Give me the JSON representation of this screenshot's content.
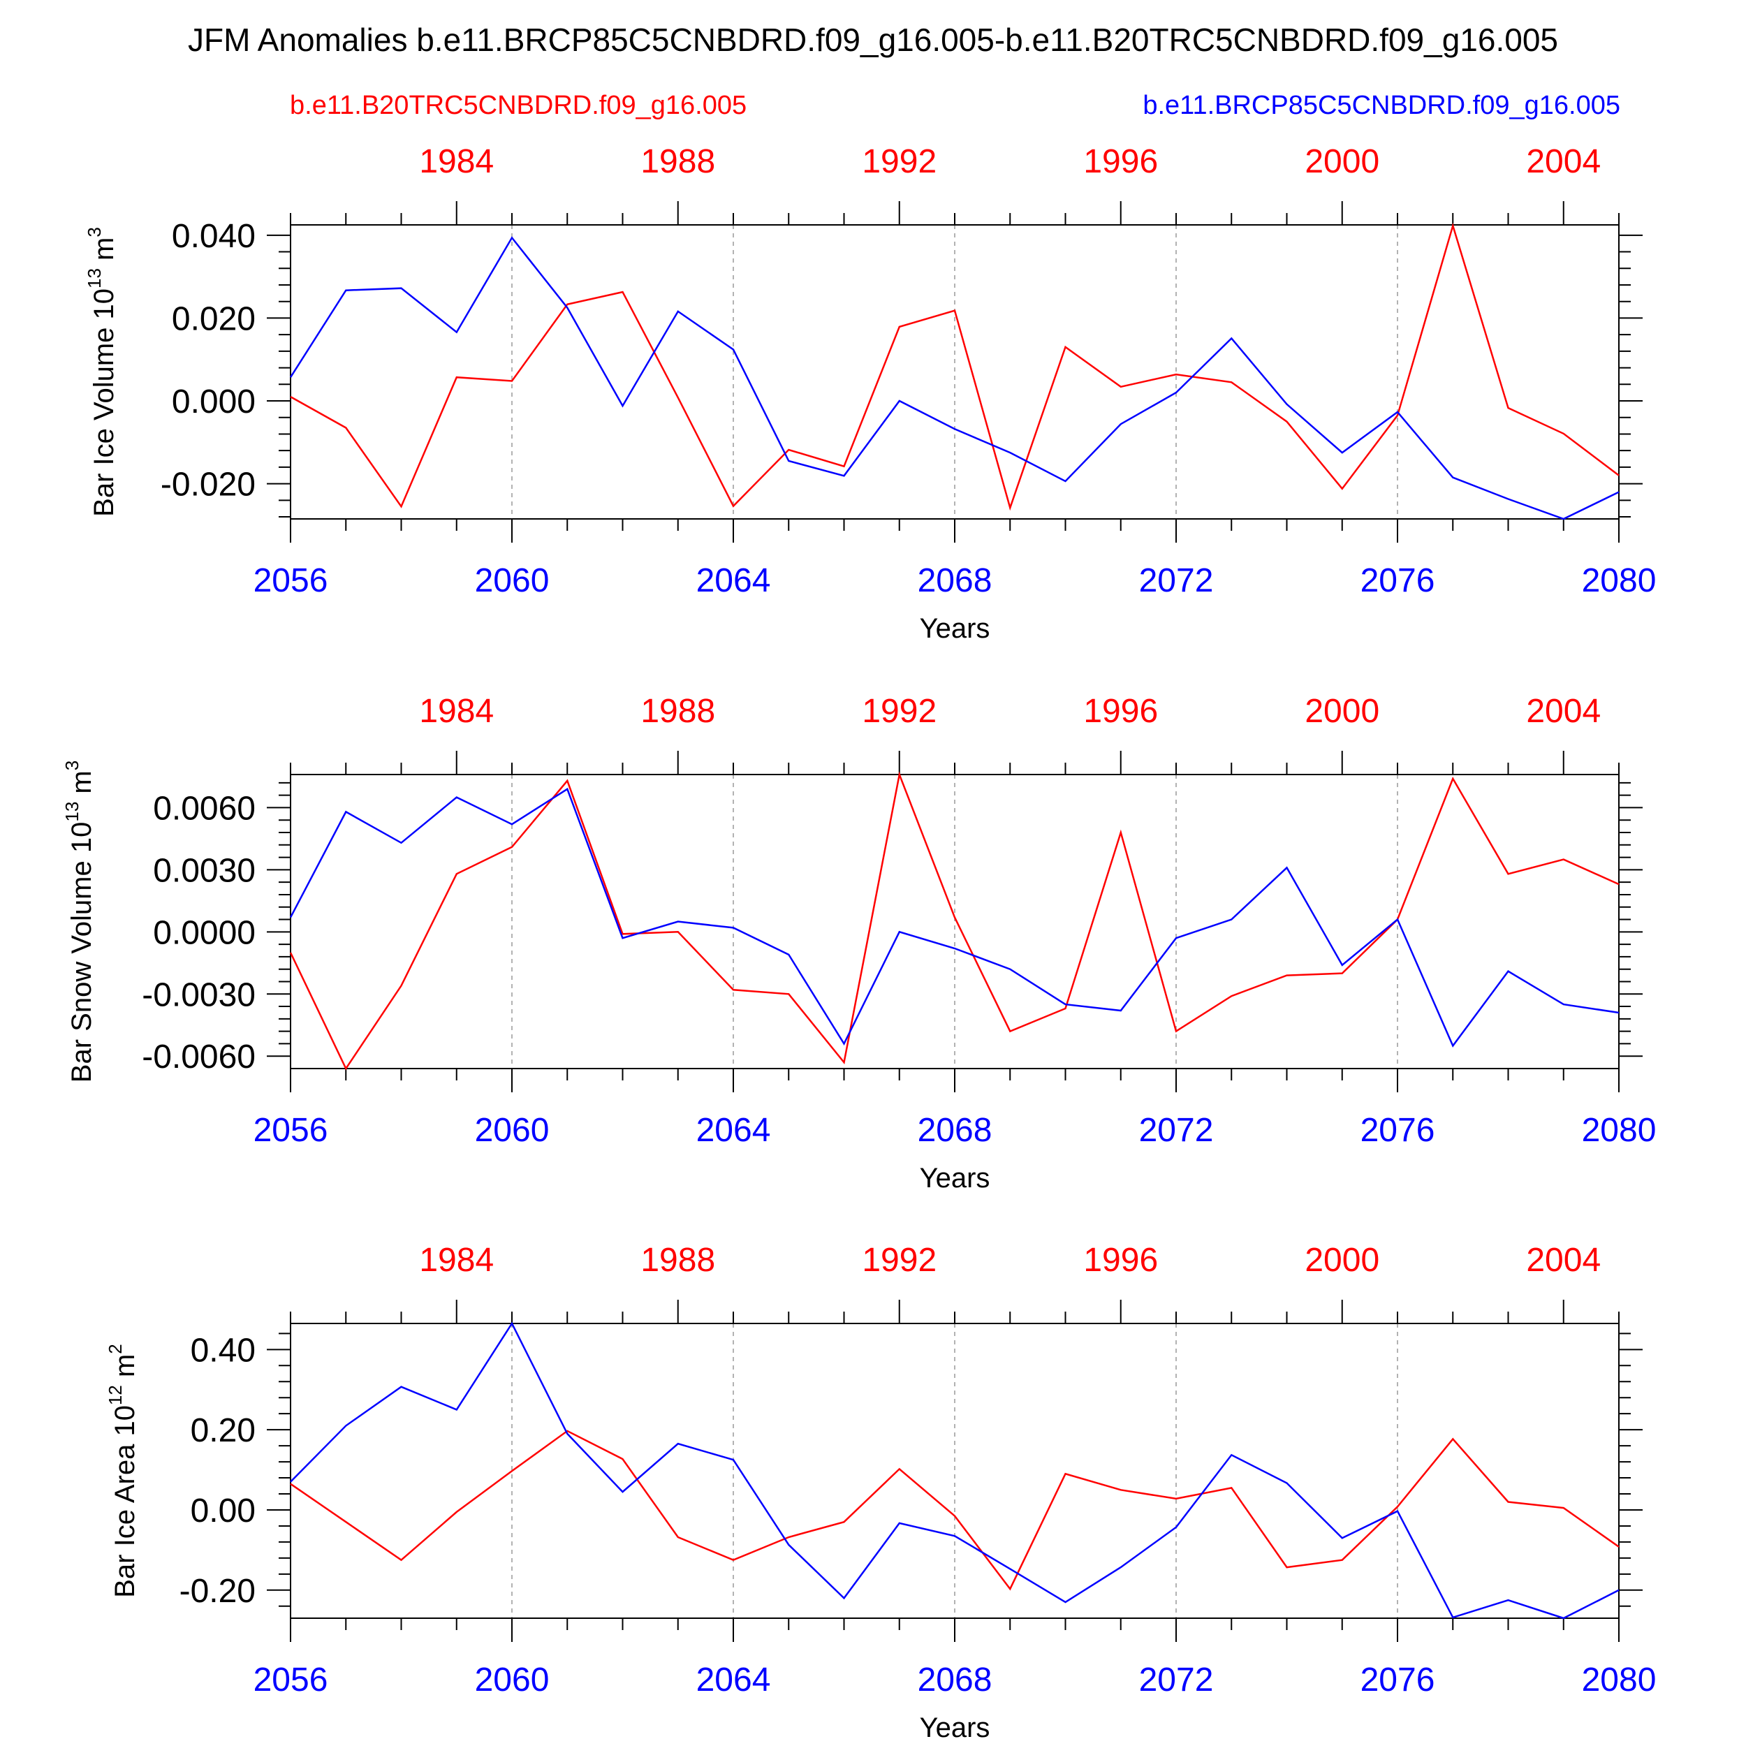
{
  "title": "JFM Anomalies b.e11.BRCP85C5CNBDRD.f09_g16.005-b.e11.B20TRC5CNBDRD.f09_g16.005",
  "legend": {
    "red_label": "b.e11.B20TRC5CNBDRD.f09_g16.005",
    "blue_label": "b.e11.BRCP85C5CNBDRD.f09_g16.005"
  },
  "colors": {
    "red": "#ff0000",
    "blue": "#0000ff",
    "axis": "#000000",
    "grid": "#999999"
  },
  "chart_data": [
    {
      "type": "line",
      "ylabel": "Bar Ice Volume 10",
      "ylabel_exp": "13",
      "ylabel_unit": "m",
      "ylabel_unit_exp": "3",
      "xlabel": "Years",
      "x_bottom_ticks": [
        "2056",
        "2060",
        "2064",
        "2068",
        "2072",
        "2076",
        "2080"
      ],
      "x_top_ticks": [
        "1984",
        "1988",
        "1992",
        "1996",
        "2000",
        "2004"
      ],
      "y_ticks": [
        "0.040",
        "0.020",
        "0.000",
        "-0.020"
      ],
      "y_tick_values": [
        0.04,
        0.02,
        0.0,
        -0.02
      ],
      "ylim": [
        -0.0285,
        0.0425
      ],
      "xlim": [
        2056,
        2080
      ],
      "top_xlim": [
        1981,
        2005
      ],
      "grid": "vertical dashed at 2060, 2064, 2068, 2072, 2076",
      "x": [
        2056,
        2057,
        2058,
        2059,
        2060,
        2061,
        2062,
        2063,
        2064,
        2065,
        2066,
        2067,
        2068,
        2069,
        2070,
        2071,
        2072,
        2073,
        2074,
        2075,
        2076,
        2077,
        2078,
        2079,
        2080
      ],
      "series": [
        {
          "name": "b.e11.B20TRC5CNBDRD.f09_g16.005",
          "color": "#ff0000",
          "values": [
            0.001,
            -0.0065,
            -0.0255,
            0.0057,
            0.0048,
            0.0233,
            0.0263,
            0.0008,
            -0.0254,
            -0.0118,
            -0.0158,
            0.0179,
            0.0218,
            -0.0258,
            0.013,
            0.0034,
            0.0064,
            0.0045,
            -0.005,
            -0.0212,
            -0.0035,
            0.0423,
            -0.0017,
            -0.0079,
            -0.018
          ]
        },
        {
          "name": "b.e11.BRCP85C5CNBDRD.f09_g16.005",
          "color": "#0000ff",
          "values": [
            0.0057,
            0.0267,
            0.0272,
            0.0166,
            0.0394,
            0.0225,
            -0.0012,
            0.0216,
            0.0124,
            -0.0145,
            -0.0181,
            0.0,
            -0.0068,
            -0.0125,
            -0.0194,
            -0.0056,
            0.002,
            0.0151,
            -0.0008,
            -0.0125,
            -0.0027,
            -0.0185,
            -0.0237,
            -0.0285,
            -0.022
          ]
        }
      ]
    },
    {
      "type": "line",
      "ylabel": "Bar Snow Volume 10",
      "ylabel_exp": "13",
      "ylabel_unit": "m",
      "ylabel_unit_exp": "3",
      "xlabel": "Years",
      "x_bottom_ticks": [
        "2056",
        "2060",
        "2064",
        "2068",
        "2072",
        "2076",
        "2080"
      ],
      "x_top_ticks": [
        "1984",
        "1988",
        "1992",
        "1996",
        "2000",
        "2004"
      ],
      "y_ticks": [
        "0.0060",
        "0.0030",
        "0.0000",
        "-0.0030",
        "-0.0060"
      ],
      "y_tick_values": [
        0.006,
        0.003,
        0.0,
        -0.003,
        -0.006
      ],
      "ylim": [
        -0.0066,
        0.0076
      ],
      "xlim": [
        2056,
        2080
      ],
      "top_xlim": [
        1981,
        2005
      ],
      "grid": "vertical dashed at 2060, 2064, 2068, 2072, 2076",
      "x": [
        2056,
        2057,
        2058,
        2059,
        2060,
        2061,
        2062,
        2063,
        2064,
        2065,
        2066,
        2067,
        2068,
        2069,
        2070,
        2071,
        2072,
        2073,
        2074,
        2075,
        2076,
        2077,
        2078,
        2079,
        2080
      ],
      "series": [
        {
          "name": "b.e11.B20TRC5CNBDRD.f09_g16.005",
          "color": "#ff0000",
          "values": [
            -0.001,
            -0.0066,
            -0.0026,
            0.0028,
            0.0041,
            0.0073,
            -0.0001,
            0.0,
            -0.0028,
            -0.003,
            -0.0063,
            0.0076,
            0.0007,
            -0.0048,
            -0.0037,
            0.0048,
            -0.0048,
            -0.0031,
            -0.0021,
            -0.002,
            0.0006,
            0.0074,
            0.0028,
            0.0035,
            0.0023
          ]
        },
        {
          "name": "b.e11.BRCP85C5CNBDRD.f09_g16.005",
          "color": "#0000ff",
          "values": [
            0.0007,
            0.0058,
            0.0043,
            0.0065,
            0.0052,
            0.0069,
            -0.0003,
            0.0005,
            0.0002,
            -0.0011,
            -0.0054,
            0.0,
            -0.0008,
            -0.0018,
            -0.0035,
            -0.0038,
            -0.0003,
            0.0006,
            0.0031,
            -0.0016,
            0.0006,
            -0.0055,
            -0.0019,
            -0.0035,
            -0.0039
          ]
        }
      ]
    },
    {
      "type": "line",
      "ylabel": "Bar Ice Area 10",
      "ylabel_exp": "12",
      "ylabel_unit": "m",
      "ylabel_unit_exp": "2",
      "xlabel": "Years",
      "x_bottom_ticks": [
        "2056",
        "2060",
        "2064",
        "2068",
        "2072",
        "2076",
        "2080"
      ],
      "x_top_ticks": [
        "1984",
        "1988",
        "1992",
        "1996",
        "2000",
        "2004"
      ],
      "y_ticks": [
        "0.40",
        "0.20",
        "0.00",
        "-0.20"
      ],
      "y_tick_values": [
        0.4,
        0.2,
        0.0,
        -0.2
      ],
      "ylim": [
        -0.27,
        0.465
      ],
      "xlim": [
        2056,
        2080
      ],
      "top_xlim": [
        1981,
        2005
      ],
      "grid": "vertical dashed at 2060, 2064, 2068, 2072, 2076",
      "x": [
        2056,
        2057,
        2058,
        2059,
        2060,
        2061,
        2062,
        2063,
        2064,
        2065,
        2066,
        2067,
        2068,
        2069,
        2070,
        2071,
        2072,
        2073,
        2074,
        2075,
        2076,
        2077,
        2078,
        2079,
        2080
      ],
      "series": [
        {
          "name": "b.e11.B20TRC5CNBDRD.f09_g16.005",
          "color": "#ff0000",
          "values": [
            0.065,
            -0.03,
            -0.125,
            -0.005,
            0.097,
            0.197,
            0.127,
            -0.068,
            -0.125,
            -0.068,
            -0.03,
            0.102,
            -0.015,
            -0.197,
            0.09,
            0.05,
            0.028,
            0.055,
            -0.143,
            -0.125,
            0.008,
            0.177,
            0.02,
            0.005,
            -0.092
          ]
        },
        {
          "name": "b.e11.BRCP85C5CNBDRD.f09_g16.005",
          "color": "#0000ff",
          "values": [
            0.07,
            0.21,
            0.307,
            0.25,
            0.465,
            0.19,
            0.045,
            0.165,
            0.125,
            -0.087,
            -0.22,
            -0.033,
            -0.065,
            -0.147,
            -0.23,
            -0.143,
            -0.043,
            0.137,
            0.067,
            -0.07,
            -0.003,
            -0.268,
            -0.225,
            -0.27,
            -0.2
          ]
        }
      ]
    }
  ]
}
